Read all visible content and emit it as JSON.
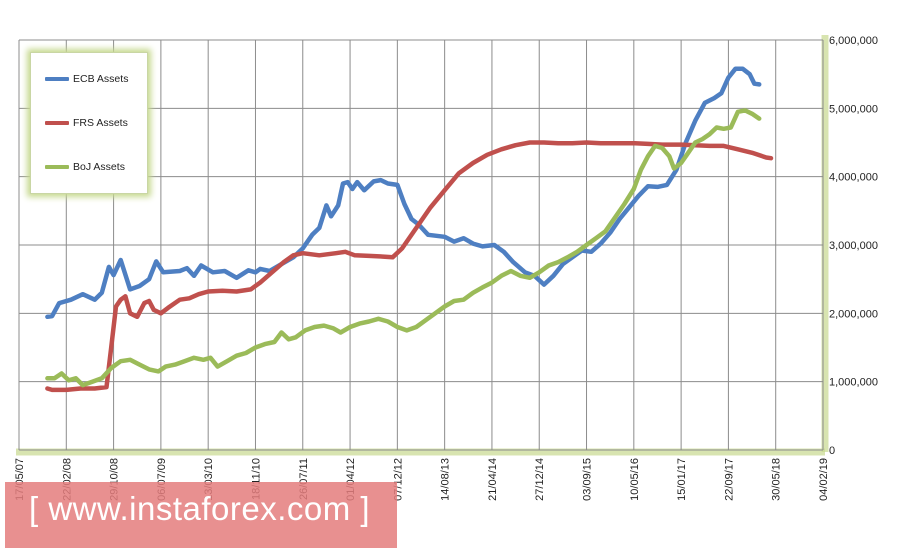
{
  "chart_data": {
    "type": "line",
    "x_labels": [
      "17/05/07",
      "22/02/08",
      "29/10/08",
      "06/07/09",
      "13/03/10",
      "18/11/10",
      "26/07/11",
      "01/04/12",
      "07/12/12",
      "14/08/13",
      "21/04/14",
      "27/12/14",
      "03/09/15",
      "10/05/16",
      "15/01/17",
      "22/09/17",
      "30/05/18",
      "04/02/19"
    ],
    "y_ticks": [
      "0",
      "1,000,000",
      "2,000,000",
      "3,000,000",
      "4,000,000",
      "5,000,000",
      "6,000,000"
    ],
    "ylim": [
      0,
      6000000
    ],
    "grid": true,
    "legend_position": "top-left",
    "series": [
      {
        "name": "ECB Assets",
        "color": "#4e7fc2",
        "points": [
          [
            0.6,
            1.95
          ],
          [
            0.7,
            1.96
          ],
          [
            0.85,
            2.15
          ],
          [
            1.1,
            2.2
          ],
          [
            1.35,
            2.28
          ],
          [
            1.6,
            2.2
          ],
          [
            1.75,
            2.3
          ],
          [
            1.9,
            2.68
          ],
          [
            2.0,
            2.56
          ],
          [
            2.15,
            2.78
          ],
          [
            2.35,
            2.35
          ],
          [
            2.55,
            2.4
          ],
          [
            2.75,
            2.5
          ],
          [
            2.9,
            2.76
          ],
          [
            3.05,
            2.6
          ],
          [
            3.4,
            2.62
          ],
          [
            3.55,
            2.66
          ],
          [
            3.7,
            2.55
          ],
          [
            3.85,
            2.7
          ],
          [
            4.1,
            2.6
          ],
          [
            4.35,
            2.62
          ],
          [
            4.6,
            2.52
          ],
          [
            4.85,
            2.63
          ],
          [
            5.0,
            2.6
          ],
          [
            5.1,
            2.65
          ],
          [
            5.3,
            2.62
          ],
          [
            5.55,
            2.72
          ],
          [
            5.8,
            2.82
          ],
          [
            6.0,
            2.95
          ],
          [
            6.2,
            3.15
          ],
          [
            6.35,
            3.25
          ],
          [
            6.5,
            3.58
          ],
          [
            6.6,
            3.42
          ],
          [
            6.75,
            3.58
          ],
          [
            6.85,
            3.9
          ],
          [
            6.95,
            3.92
          ],
          [
            7.05,
            3.82
          ],
          [
            7.15,
            3.92
          ],
          [
            7.3,
            3.8
          ],
          [
            7.5,
            3.93
          ],
          [
            7.65,
            3.95
          ],
          [
            7.8,
            3.9
          ],
          [
            8.0,
            3.88
          ],
          [
            8.15,
            3.6
          ],
          [
            8.3,
            3.38
          ],
          [
            8.45,
            3.3
          ],
          [
            8.65,
            3.15
          ],
          [
            9.0,
            3.12
          ],
          [
            9.2,
            3.05
          ],
          [
            9.4,
            3.1
          ],
          [
            9.6,
            3.02
          ],
          [
            9.8,
            2.98
          ],
          [
            10.05,
            3.0
          ],
          [
            10.25,
            2.9
          ],
          [
            10.45,
            2.75
          ],
          [
            10.7,
            2.6
          ],
          [
            10.9,
            2.55
          ],
          [
            11.1,
            2.42
          ],
          [
            11.3,
            2.55
          ],
          [
            11.5,
            2.72
          ],
          [
            11.7,
            2.82
          ],
          [
            11.9,
            2.92
          ],
          [
            12.1,
            2.9
          ],
          [
            12.3,
            3.02
          ],
          [
            12.5,
            3.18
          ],
          [
            12.7,
            3.38
          ],
          [
            12.9,
            3.55
          ],
          [
            13.1,
            3.72
          ],
          [
            13.3,
            3.86
          ],
          [
            13.5,
            3.85
          ],
          [
            13.7,
            3.88
          ],
          [
            13.9,
            4.1
          ],
          [
            14.1,
            4.5
          ],
          [
            14.3,
            4.82
          ],
          [
            14.5,
            5.08
          ],
          [
            14.7,
            5.15
          ],
          [
            14.85,
            5.22
          ],
          [
            15.0,
            5.45
          ],
          [
            15.15,
            5.58
          ],
          [
            15.3,
            5.58
          ],
          [
            15.45,
            5.5
          ],
          [
            15.55,
            5.36
          ],
          [
            15.65,
            5.35
          ]
        ]
      },
      {
        "name": "FRS Assets",
        "color": "#c0504d",
        "points": [
          [
            0.6,
            0.9
          ],
          [
            0.7,
            0.88
          ],
          [
            1.0,
            0.88
          ],
          [
            1.3,
            0.9
          ],
          [
            1.6,
            0.9
          ],
          [
            1.85,
            0.92
          ],
          [
            1.95,
            1.5
          ],
          [
            2.05,
            2.1
          ],
          [
            2.15,
            2.2
          ],
          [
            2.25,
            2.25
          ],
          [
            2.35,
            2.0
          ],
          [
            2.5,
            1.95
          ],
          [
            2.65,
            2.15
          ],
          [
            2.75,
            2.18
          ],
          [
            2.85,
            2.05
          ],
          [
            3.0,
            2.0
          ],
          [
            3.15,
            2.08
          ],
          [
            3.4,
            2.2
          ],
          [
            3.6,
            2.22
          ],
          [
            3.8,
            2.28
          ],
          [
            4.0,
            2.32
          ],
          [
            4.3,
            2.33
          ],
          [
            4.6,
            2.32
          ],
          [
            4.9,
            2.35
          ],
          [
            5.1,
            2.45
          ],
          [
            5.35,
            2.6
          ],
          [
            5.6,
            2.75
          ],
          [
            5.8,
            2.85
          ],
          [
            6.0,
            2.88
          ],
          [
            6.35,
            2.85
          ],
          [
            6.7,
            2.88
          ],
          [
            6.9,
            2.9
          ],
          [
            7.1,
            2.85
          ],
          [
            7.4,
            2.84
          ],
          [
            7.7,
            2.83
          ],
          [
            7.9,
            2.82
          ],
          [
            8.1,
            2.95
          ],
          [
            8.4,
            3.25
          ],
          [
            8.7,
            3.55
          ],
          [
            9.0,
            3.8
          ],
          [
            9.3,
            4.05
          ],
          [
            9.6,
            4.2
          ],
          [
            9.9,
            4.32
          ],
          [
            10.2,
            4.4
          ],
          [
            10.5,
            4.46
          ],
          [
            10.8,
            4.5
          ],
          [
            11.1,
            4.5
          ],
          [
            11.4,
            4.49
          ],
          [
            11.7,
            4.49
          ],
          [
            12.0,
            4.5
          ],
          [
            12.3,
            4.49
          ],
          [
            12.6,
            4.49
          ],
          [
            13.0,
            4.49
          ],
          [
            13.3,
            4.48
          ],
          [
            13.6,
            4.47
          ],
          [
            14.0,
            4.47
          ],
          [
            14.3,
            4.46
          ],
          [
            14.6,
            4.45
          ],
          [
            14.9,
            4.45
          ],
          [
            15.2,
            4.4
          ],
          [
            15.5,
            4.35
          ],
          [
            15.8,
            4.28
          ],
          [
            15.9,
            4.27
          ]
        ]
      },
      {
        "name": "BoJ Assets",
        "color": "#9bbb59",
        "points": [
          [
            0.6,
            1.05
          ],
          [
            0.75,
            1.05
          ],
          [
            0.9,
            1.12
          ],
          [
            1.05,
            1.02
          ],
          [
            1.2,
            1.05
          ],
          [
            1.35,
            0.95
          ],
          [
            1.55,
            1.0
          ],
          [
            1.75,
            1.05
          ],
          [
            1.95,
            1.2
          ],
          [
            2.15,
            1.3
          ],
          [
            2.35,
            1.32
          ],
          [
            2.55,
            1.25
          ],
          [
            2.75,
            1.18
          ],
          [
            2.95,
            1.15
          ],
          [
            3.1,
            1.22
          ],
          [
            3.3,
            1.25
          ],
          [
            3.5,
            1.3
          ],
          [
            3.7,
            1.35
          ],
          [
            3.9,
            1.32
          ],
          [
            4.05,
            1.35
          ],
          [
            4.2,
            1.22
          ],
          [
            4.4,
            1.3
          ],
          [
            4.6,
            1.38
          ],
          [
            4.8,
            1.42
          ],
          [
            5.0,
            1.5
          ],
          [
            5.2,
            1.55
          ],
          [
            5.4,
            1.58
          ],
          [
            5.55,
            1.72
          ],
          [
            5.7,
            1.62
          ],
          [
            5.85,
            1.65
          ],
          [
            6.05,
            1.75
          ],
          [
            6.25,
            1.8
          ],
          [
            6.45,
            1.82
          ],
          [
            6.65,
            1.78
          ],
          [
            6.8,
            1.72
          ],
          [
            7.0,
            1.8
          ],
          [
            7.2,
            1.85
          ],
          [
            7.4,
            1.88
          ],
          [
            7.6,
            1.92
          ],
          [
            7.8,
            1.88
          ],
          [
            8.0,
            1.8
          ],
          [
            8.2,
            1.75
          ],
          [
            8.4,
            1.8
          ],
          [
            8.6,
            1.9
          ],
          [
            8.8,
            2.0
          ],
          [
            9.0,
            2.1
          ],
          [
            9.2,
            2.18
          ],
          [
            9.4,
            2.2
          ],
          [
            9.6,
            2.3
          ],
          [
            9.8,
            2.38
          ],
          [
            10.0,
            2.45
          ],
          [
            10.2,
            2.55
          ],
          [
            10.4,
            2.62
          ],
          [
            10.6,
            2.55
          ],
          [
            10.8,
            2.52
          ],
          [
            11.0,
            2.6
          ],
          [
            11.2,
            2.7
          ],
          [
            11.4,
            2.75
          ],
          [
            11.6,
            2.82
          ],
          [
            11.8,
            2.9
          ],
          [
            12.0,
            3.0
          ],
          [
            12.2,
            3.1
          ],
          [
            12.4,
            3.2
          ],
          [
            12.6,
            3.4
          ],
          [
            12.8,
            3.6
          ],
          [
            13.0,
            3.82
          ],
          [
            13.15,
            4.1
          ],
          [
            13.3,
            4.3
          ],
          [
            13.45,
            4.45
          ],
          [
            13.6,
            4.42
          ],
          [
            13.75,
            4.3
          ],
          [
            13.85,
            4.12
          ],
          [
            14.0,
            4.2
          ],
          [
            14.15,
            4.35
          ],
          [
            14.3,
            4.5
          ],
          [
            14.45,
            4.55
          ],
          [
            14.6,
            4.62
          ],
          [
            14.75,
            4.72
          ],
          [
            14.9,
            4.7
          ],
          [
            15.05,
            4.72
          ],
          [
            15.2,
            4.95
          ],
          [
            15.35,
            4.97
          ],
          [
            15.5,
            4.92
          ],
          [
            15.65,
            4.85
          ]
        ]
      }
    ]
  },
  "watermark": {
    "text": "[ www.instaforex.com ]"
  }
}
